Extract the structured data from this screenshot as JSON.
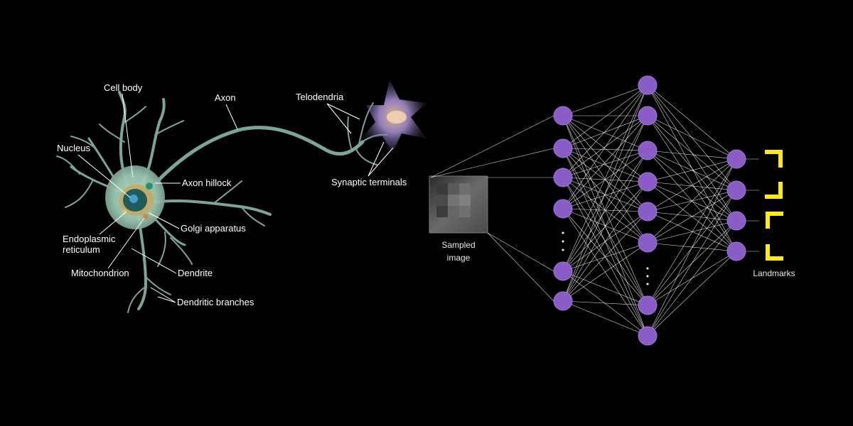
{
  "neuron": {
    "labels": {
      "cell_body": "Cell body",
      "axon": "Axon",
      "telodendria": "Telodendria",
      "nucleus": "Nucleus",
      "axon_hillock": "Axon hillock",
      "synaptic_terminals": "Synaptic terminals",
      "endoplasmic_reticulum_line1": "Endoplasmic",
      "endoplasmic_reticulum_line2": "reticulum",
      "golgi_apparatus": "Golgi apparatus",
      "mitochondrion": "Mitochondrion",
      "dendrite": "Dendrite",
      "dendritic_branches": "Dendritic branches"
    },
    "colors": {
      "dendrite": "#7aa59b",
      "terminal_cell": "#9b86c4"
    }
  },
  "network": {
    "input_label_line1": "Sampled",
    "input_label_line2": "image",
    "output_label": "Landmarks",
    "colors": {
      "node": "#8a5cc7",
      "bracket": "#ffee00",
      "edge": "#ffffff"
    }
  }
}
